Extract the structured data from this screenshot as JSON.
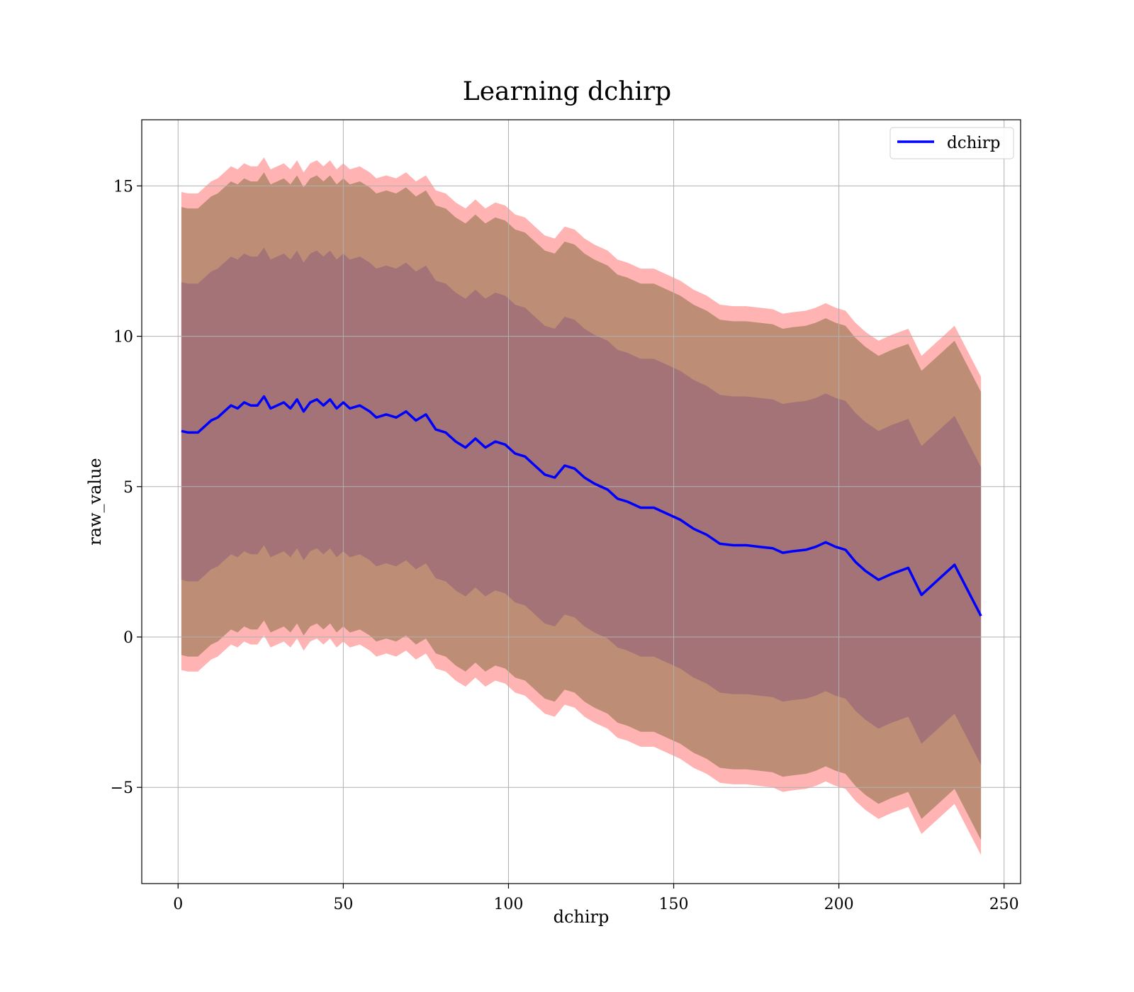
{
  "chart_data": {
    "type": "line",
    "title": "Learning dchirp",
    "xlabel": "dchirp",
    "ylabel": "raw_value",
    "xlim": [
      -11,
      255
    ],
    "ylim": [
      -8.2,
      17.2
    ],
    "x_ticks": [
      0,
      50,
      100,
      150,
      200,
      250
    ],
    "y_ticks": [
      -5,
      0,
      5,
      10,
      15
    ],
    "x_tick_labels": [
      "0",
      "50",
      "100",
      "150",
      "200",
      "250"
    ],
    "y_tick_labels": [
      "−5",
      "0",
      "5",
      "10",
      "15"
    ],
    "grid": true,
    "legend": {
      "position": "top-right",
      "entries": [
        "dchirp"
      ]
    },
    "colors": {
      "line": "#0000ff",
      "band_outer": "#ff8080",
      "band_middle": "#b2876a",
      "band_inner": "#a07078"
    },
    "series": [
      {
        "name": "dchirp",
        "x": [
          1,
          3,
          6,
          8,
          10,
          12,
          14,
          16,
          18,
          20,
          22,
          24,
          26,
          28,
          30,
          32,
          34,
          36,
          38,
          40,
          42,
          44,
          46,
          48,
          50,
          52,
          55,
          58,
          60,
          63,
          66,
          69,
          72,
          75,
          78,
          81,
          84,
          87,
          90,
          93,
          96,
          99,
          102,
          105,
          108,
          111,
          114,
          117,
          120,
          123,
          126,
          130,
          133,
          136,
          140,
          144,
          148,
          152,
          156,
          160,
          164,
          168,
          172,
          176,
          180,
          183,
          186,
          190,
          193,
          196,
          199,
          202,
          205,
          208,
          212,
          216,
          221,
          225,
          235,
          243
        ],
        "values": [
          6.85,
          6.8,
          6.8,
          7.0,
          7.2,
          7.3,
          7.5,
          7.7,
          7.6,
          7.8,
          7.7,
          7.7,
          8.0,
          7.6,
          7.7,
          7.8,
          7.6,
          7.9,
          7.5,
          7.8,
          7.9,
          7.7,
          7.9,
          7.6,
          7.8,
          7.6,
          7.7,
          7.5,
          7.3,
          7.4,
          7.3,
          7.5,
          7.2,
          7.4,
          6.9,
          6.8,
          6.5,
          6.3,
          6.6,
          6.3,
          6.5,
          6.4,
          6.1,
          6.0,
          5.7,
          5.4,
          5.3,
          5.7,
          5.6,
          5.3,
          5.1,
          4.9,
          4.6,
          4.5,
          4.3,
          4.3,
          4.1,
          3.9,
          3.6,
          3.4,
          3.1,
          3.05,
          3.05,
          3.0,
          2.95,
          2.8,
          2.85,
          2.9,
          3.0,
          3.15,
          3.0,
          2.9,
          2.5,
          2.2,
          1.9,
          2.1,
          2.3,
          1.4,
          2.4,
          0.7
        ],
        "band_inner_halfwidth": [
          4.95,
          4.95,
          4.95,
          4.95,
          4.95,
          4.95,
          4.95,
          4.95,
          4.95,
          4.95,
          4.95,
          4.95,
          4.95,
          4.95,
          4.95,
          4.95,
          4.95,
          4.95,
          4.95,
          4.95,
          4.95,
          4.95,
          4.95,
          4.95,
          4.95,
          4.95,
          4.95,
          4.95,
          4.95,
          4.95,
          4.95,
          4.95,
          4.95,
          4.95,
          4.95,
          4.95,
          4.95,
          4.95,
          4.95,
          4.95,
          4.95,
          4.95,
          4.95,
          4.95,
          4.95,
          4.95,
          4.95,
          4.95,
          4.95,
          4.95,
          4.95,
          4.95,
          4.95,
          4.95,
          4.95,
          4.95,
          4.95,
          4.95,
          4.95,
          4.95,
          4.95,
          4.95,
          4.95,
          4.95,
          4.95,
          4.95,
          4.95,
          4.95,
          4.95,
          4.95,
          4.95,
          4.95,
          4.95,
          4.95,
          4.95,
          4.95,
          4.95,
          4.95,
          4.95,
          4.95
        ],
        "band_middle_halfwidth": [
          7.45,
          7.45,
          7.45,
          7.45,
          7.45,
          7.45,
          7.45,
          7.45,
          7.45,
          7.45,
          7.45,
          7.45,
          7.45,
          7.45,
          7.45,
          7.45,
          7.45,
          7.45,
          7.45,
          7.45,
          7.45,
          7.45,
          7.45,
          7.45,
          7.45,
          7.45,
          7.45,
          7.45,
          7.45,
          7.45,
          7.45,
          7.45,
          7.45,
          7.45,
          7.45,
          7.45,
          7.45,
          7.45,
          7.45,
          7.45,
          7.45,
          7.45,
          7.45,
          7.45,
          7.45,
          7.45,
          7.45,
          7.45,
          7.45,
          7.45,
          7.45,
          7.45,
          7.45,
          7.45,
          7.45,
          7.45,
          7.45,
          7.45,
          7.45,
          7.45,
          7.45,
          7.45,
          7.45,
          7.45,
          7.45,
          7.45,
          7.45,
          7.45,
          7.45,
          7.45,
          7.45,
          7.45,
          7.45,
          7.45,
          7.45,
          7.45,
          7.45,
          7.45,
          7.45,
          7.45
        ],
        "band_outer_halfwidth": [
          7.95,
          7.95,
          7.95,
          7.95,
          7.95,
          7.95,
          7.95,
          7.95,
          7.95,
          7.95,
          7.95,
          7.95,
          7.95,
          7.95,
          7.95,
          7.95,
          7.95,
          7.95,
          7.95,
          7.95,
          7.95,
          7.95,
          7.95,
          7.95,
          7.95,
          7.95,
          7.95,
          7.95,
          7.95,
          7.95,
          7.95,
          7.95,
          7.95,
          7.95,
          7.95,
          7.95,
          7.95,
          7.95,
          7.95,
          7.95,
          7.95,
          7.95,
          7.95,
          7.95,
          7.95,
          7.95,
          7.95,
          7.95,
          7.95,
          7.95,
          7.95,
          7.95,
          7.95,
          7.95,
          7.95,
          7.95,
          7.95,
          7.95,
          7.95,
          7.95,
          7.95,
          7.95,
          7.95,
          7.95,
          7.95,
          7.95,
          7.95,
          7.95,
          7.95,
          7.95,
          7.95,
          7.95,
          7.95,
          7.95,
          7.95,
          7.95,
          7.95,
          7.95,
          7.95,
          7.95
        ]
      }
    ]
  }
}
